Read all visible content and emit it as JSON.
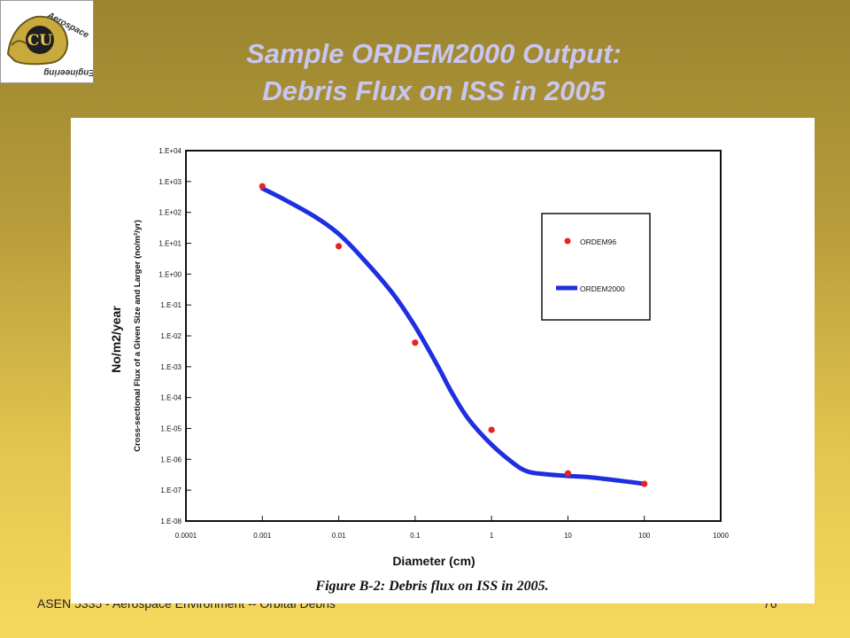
{
  "slide": {
    "title_line1": "Sample ORDEM2000 Output:",
    "title_line2": "Debris Flux on ISS in 2005",
    "footer_left": "ASEN 5335 - Aerospace Environment -- Orbital Debris",
    "page_number": "76",
    "logo": {
      "text_top": "Aerospace",
      "text_bottom": "Engineering",
      "mark": "CU"
    }
  },
  "chart_data": {
    "type": "scatter",
    "x_scale": "log",
    "y_scale": "log",
    "xlim": [
      0.0001,
      1000
    ],
    "ylim": [
      1e-08,
      10000
    ],
    "x_tick_labels": [
      "0.0001",
      "0.001",
      "0.01",
      "0.1",
      "1",
      "10",
      "100",
      "1000"
    ],
    "y_tick_labels": [
      "1.E+04",
      "1.E+03",
      "1.E+02",
      "1.E+01",
      "1.E+00",
      "1.E-01",
      "1.E-02",
      "1.E-03",
      "1.E-04",
      "1.E-05",
      "1.E-06",
      "1.E-07",
      "1.E-08"
    ],
    "ylabel": "Cross-sectional Flux of a Given Size and Larger (no/m²/yr)",
    "ylabel_overlay": "No/m2/year",
    "xlabel": "Diameter (cm)",
    "caption": "Figure B-2:  Debris flux on ISS in 2005.",
    "grid": false,
    "legend": "right",
    "series": [
      {
        "name": "ORDEM96",
        "style": "markers",
        "color": "#e8231f",
        "x": [
          0.001,
          0.01,
          0.1,
          1,
          10,
          100
        ],
        "y": [
          700,
          8,
          0.006,
          9e-06,
          3.5e-07,
          1.6e-07
        ]
      },
      {
        "name": "ORDEM2000",
        "style": "line",
        "color": "#1f2fe0",
        "x": [
          0.001,
          0.002,
          0.005,
          0.01,
          0.02,
          0.05,
          0.1,
          0.2,
          0.3,
          0.5,
          1,
          2,
          3,
          5,
          10,
          20,
          50,
          100
        ],
        "y": [
          600,
          250,
          70,
          20,
          3.5,
          0.25,
          0.02,
          0.001,
          0.00015,
          2e-05,
          3e-06,
          7e-07,
          4e-07,
          3.3e-07,
          2.9e-07,
          2.6e-07,
          2e-07,
          1.6e-07
        ]
      }
    ]
  }
}
